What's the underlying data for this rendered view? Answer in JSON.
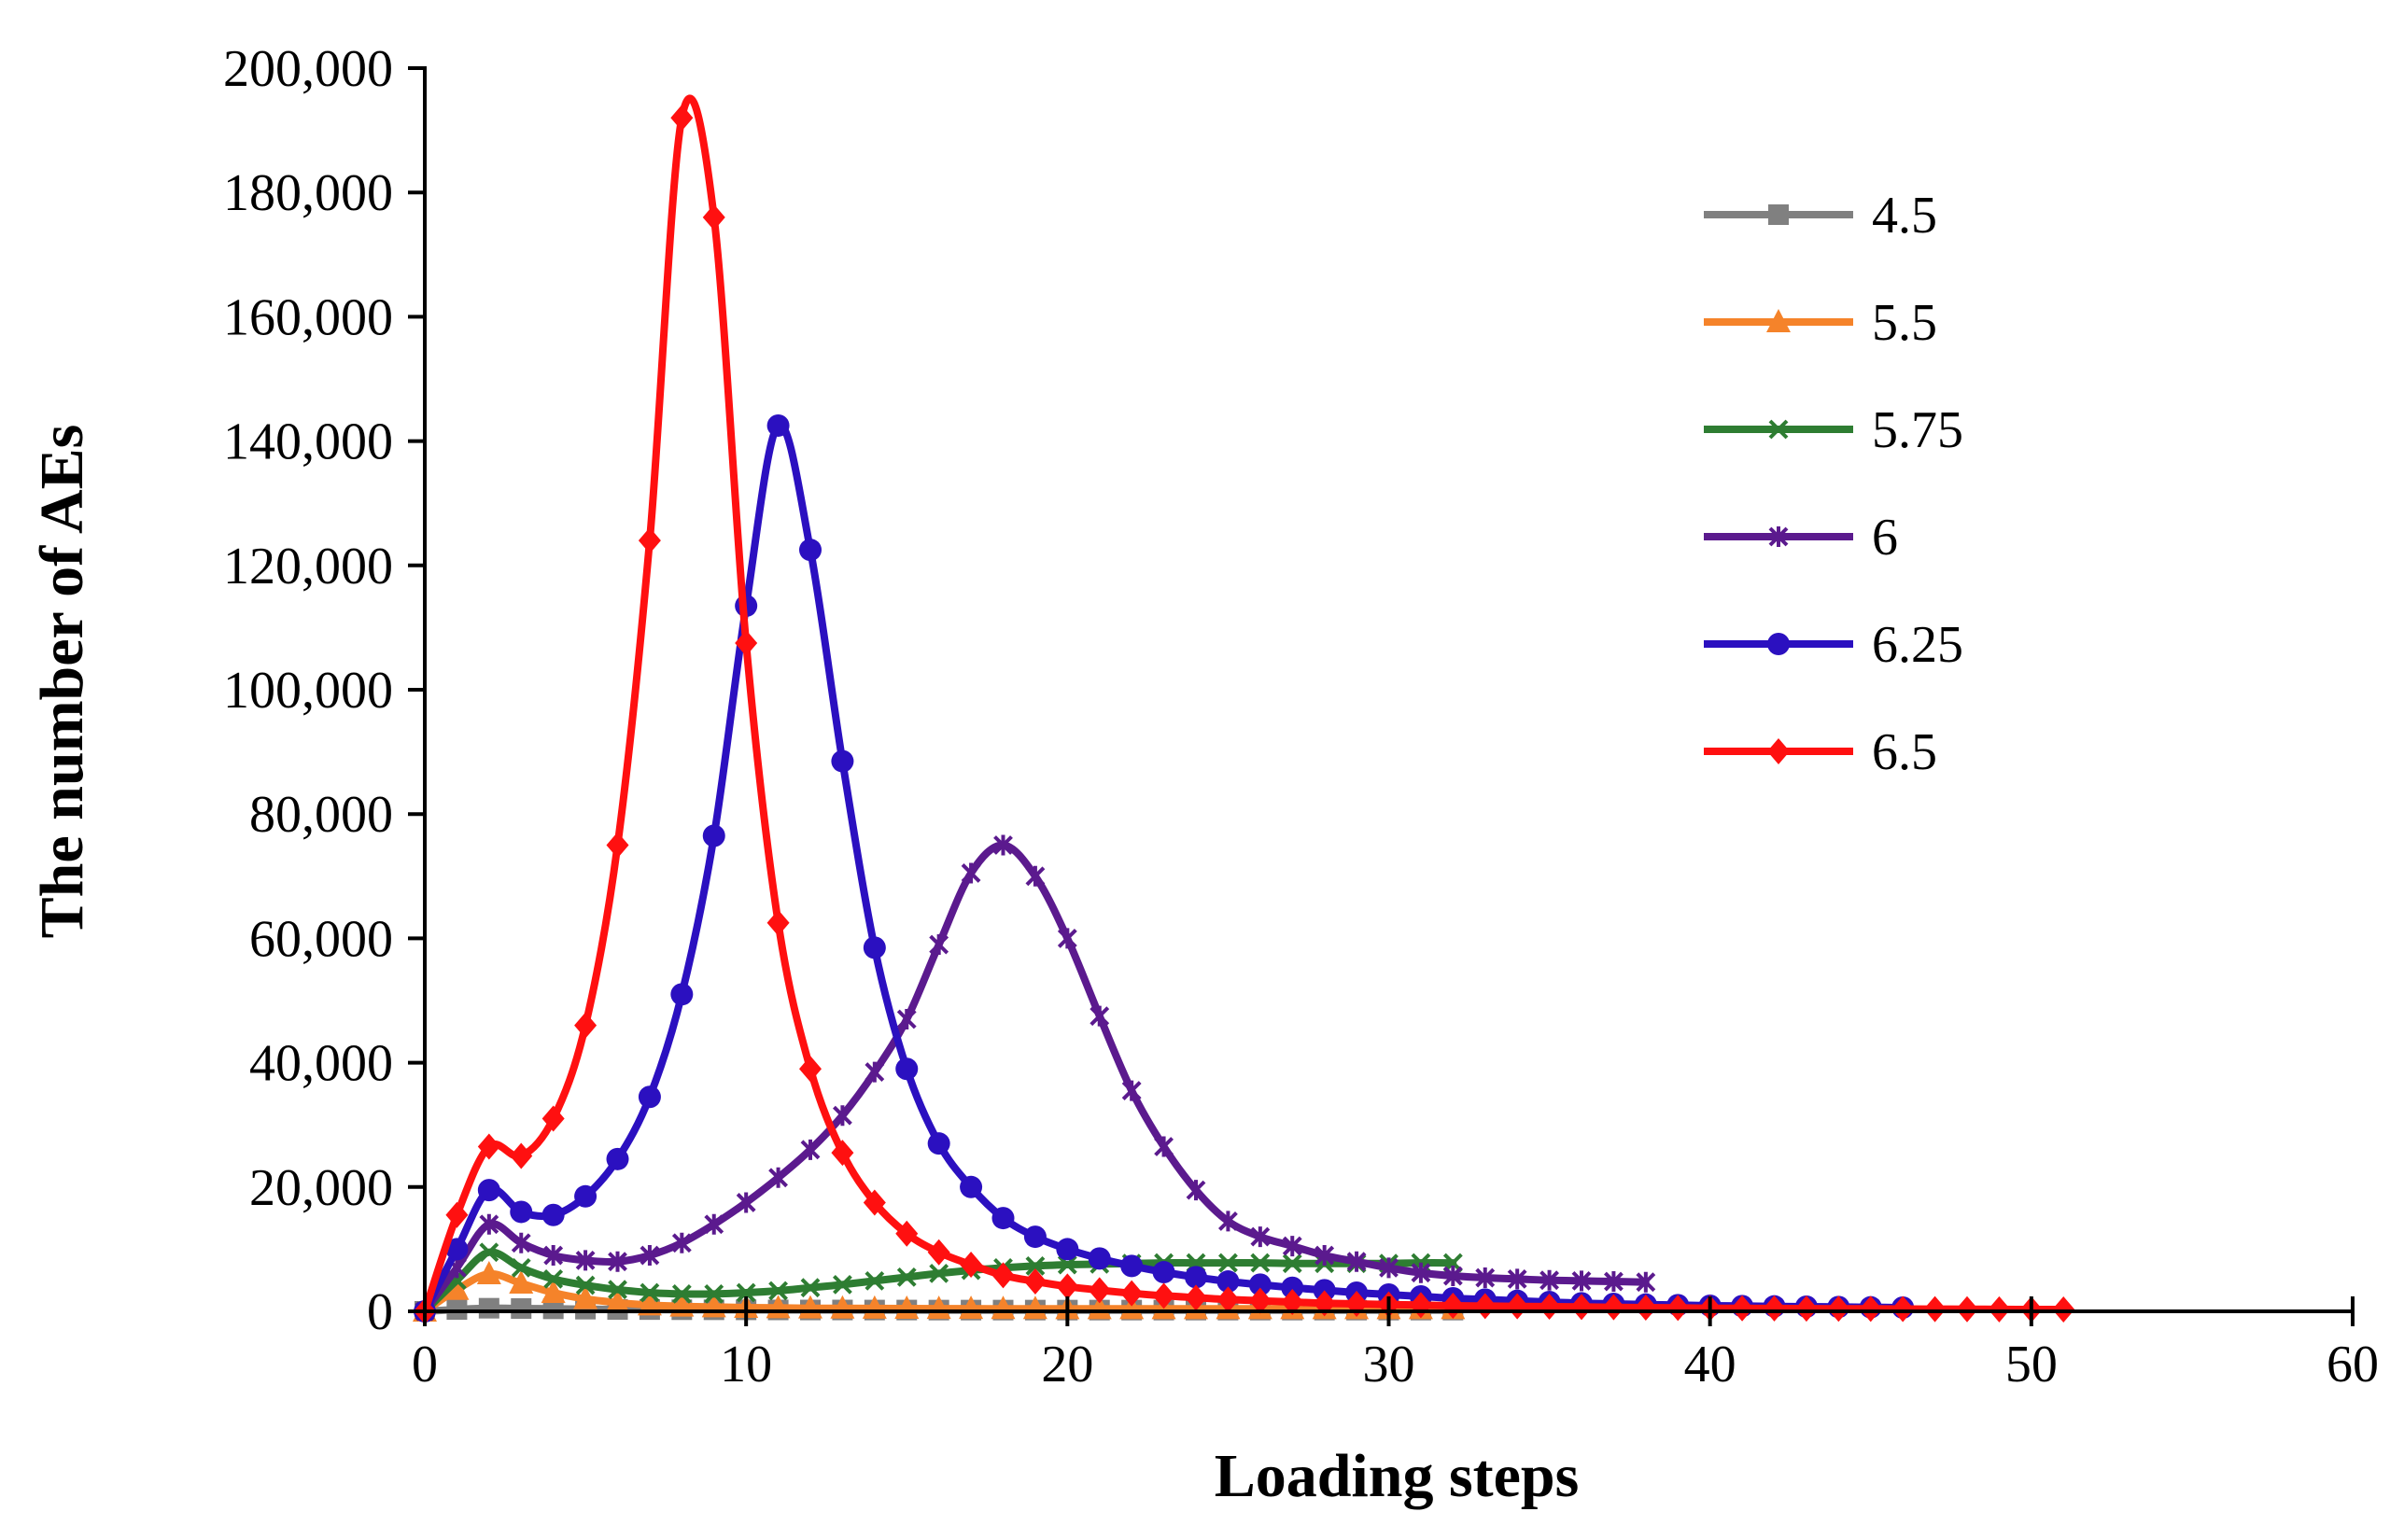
{
  "chart_data": {
    "type": "line",
    "title": "",
    "xlabel": "Loading steps",
    "ylabel": "The number of AEs",
    "xlim": [
      0,
      60
    ],
    "ylim": [
      0,
      200000
    ],
    "xticks": [
      0,
      10,
      20,
      30,
      40,
      50,
      60
    ],
    "xtick_labels": [
      "0",
      "10",
      "20",
      "30",
      "40",
      "50",
      "60"
    ],
    "yticks": [
      0,
      20000,
      40000,
      60000,
      80000,
      100000,
      120000,
      140000,
      160000,
      180000,
      200000
    ],
    "ytick_labels": [
      "0",
      "20,000",
      "40,000",
      "60,000",
      "80,000",
      "100,000",
      "120,000",
      "140,000",
      "160,000",
      "180,000",
      "200,000"
    ],
    "grid": false,
    "legend_position": "right",
    "series": [
      {
        "name": "4.5",
        "color": "#808080",
        "marker": "square",
        "x": [
          0,
          1,
          2,
          3,
          4,
          5,
          6,
          7,
          8,
          9,
          10,
          11,
          12,
          13,
          14,
          15,
          16,
          17,
          18,
          19,
          20,
          21,
          22,
          23,
          24,
          25,
          26,
          27,
          28,
          29,
          30,
          31,
          32
        ],
        "values": [
          0,
          300,
          500,
          450,
          400,
          350,
          300,
          280,
          260,
          250,
          240,
          230,
          220,
          220,
          210,
          210,
          200,
          200,
          200,
          200,
          200,
          200,
          200,
          200,
          200,
          200,
          200,
          200,
          200,
          200,
          200,
          200,
          200
        ]
      },
      {
        "name": "5.5",
        "color": "#F5832A",
        "marker": "triangle",
        "x": [
          0,
          1,
          2,
          3,
          4,
          5,
          6,
          7,
          8,
          9,
          10,
          11,
          12,
          13,
          14,
          15,
          16,
          17,
          18,
          19,
          20,
          21,
          22,
          23,
          24,
          25,
          26,
          27,
          28,
          29,
          30,
          31,
          32
        ],
        "values": [
          0,
          3500,
          6000,
          4500,
          3000,
          2000,
          1400,
          1000,
          800,
          700,
          600,
          550,
          500,
          480,
          460,
          450,
          440,
          430,
          420,
          410,
          400,
          400,
          400,
          400,
          400,
          400,
          400,
          400,
          400,
          400,
          400,
          400,
          400
        ]
      },
      {
        "name": "5.75",
        "color": "#2E7D32",
        "marker": "x",
        "x": [
          0,
          1,
          2,
          3,
          4,
          5,
          6,
          7,
          8,
          9,
          10,
          11,
          12,
          13,
          14,
          15,
          16,
          17,
          18,
          19,
          20,
          21,
          22,
          23,
          24,
          25,
          26,
          27,
          28,
          29,
          30,
          31,
          32
        ],
        "values": [
          0,
          5000,
          9500,
          7000,
          5200,
          4200,
          3500,
          3000,
          2800,
          2800,
          3000,
          3300,
          3800,
          4300,
          4900,
          5500,
          6100,
          6600,
          7000,
          7300,
          7500,
          7600,
          7700,
          7800,
          7800,
          7800,
          7800,
          7700,
          7700,
          7700,
          7700,
          7800,
          7800
        ]
      },
      {
        "name": "6",
        "color": "#5B1A8E",
        "marker": "asterisk",
        "x": [
          0,
          1,
          2,
          3,
          4,
          5,
          6,
          7,
          8,
          9,
          10,
          11,
          12,
          13,
          14,
          15,
          16,
          17,
          18,
          19,
          20,
          21,
          22,
          23,
          24,
          25,
          26,
          27,
          28,
          29,
          30,
          31,
          32,
          33,
          34,
          35,
          36,
          37,
          38
        ],
        "values": [
          0,
          7000,
          14000,
          11000,
          9000,
          8200,
          8000,
          9000,
          11000,
          14000,
          17500,
          21500,
          26000,
          31500,
          38500,
          47000,
          59000,
          70500,
          75000,
          70000,
          60000,
          47500,
          35500,
          26500,
          19500,
          14500,
          12000,
          10500,
          9000,
          8000,
          7000,
          6200,
          5700,
          5400,
          5200,
          5000,
          4900,
          4800,
          4700
        ]
      },
      {
        "name": "6.25",
        "color": "#2B10C0",
        "marker": "circle",
        "x": [
          0,
          1,
          2,
          3,
          4,
          5,
          6,
          7,
          8,
          9,
          10,
          11,
          12,
          13,
          14,
          15,
          16,
          17,
          18,
          19,
          20,
          21,
          22,
          23,
          24,
          25,
          26,
          27,
          28,
          29,
          30,
          31,
          32,
          33,
          34,
          35,
          36,
          37,
          38,
          39,
          40,
          41,
          42,
          43,
          44,
          45,
          46
        ],
        "values": [
          0,
          10000,
          19500,
          16000,
          15500,
          18500,
          24500,
          34500,
          51000,
          76500,
          113500,
          142500,
          122500,
          88500,
          58500,
          39000,
          27000,
          20000,
          15000,
          12000,
          10000,
          8500,
          7300,
          6300,
          5500,
          4800,
          4300,
          3800,
          3400,
          3000,
          2700,
          2400,
          2100,
          1900,
          1700,
          1500,
          1300,
          1200,
          1100,
          1000,
          900,
          850,
          800,
          750,
          700,
          650,
          600
        ]
      },
      {
        "name": "6.5",
        "color": "#FF1010",
        "marker": "diamond",
        "x": [
          0,
          1,
          2,
          3,
          4,
          5,
          6,
          7,
          8,
          9,
          10,
          11,
          12,
          13,
          14,
          15,
          16,
          17,
          18,
          19,
          20,
          21,
          22,
          23,
          24,
          25,
          26,
          27,
          28,
          29,
          30,
          31,
          32,
          33,
          34,
          35,
          36,
          37,
          38,
          39,
          40,
          41,
          42,
          43,
          44,
          45,
          46,
          47,
          48,
          49,
          50,
          51
        ],
        "values": [
          0,
          15500,
          26500,
          25000,
          31000,
          46000,
          75000,
          124000,
          192000,
          176000,
          107500,
          62500,
          39000,
          25500,
          17500,
          12500,
          9500,
          7500,
          5800,
          4800,
          4000,
          3400,
          2900,
          2500,
          2200,
          1900,
          1700,
          1500,
          1300,
          1200,
          1100,
          1000,
          900,
          850,
          800,
          750,
          700,
          650,
          600,
          550,
          500,
          480,
          460,
          440,
          420,
          400,
          380,
          360,
          340,
          320,
          300,
          300
        ]
      }
    ]
  }
}
